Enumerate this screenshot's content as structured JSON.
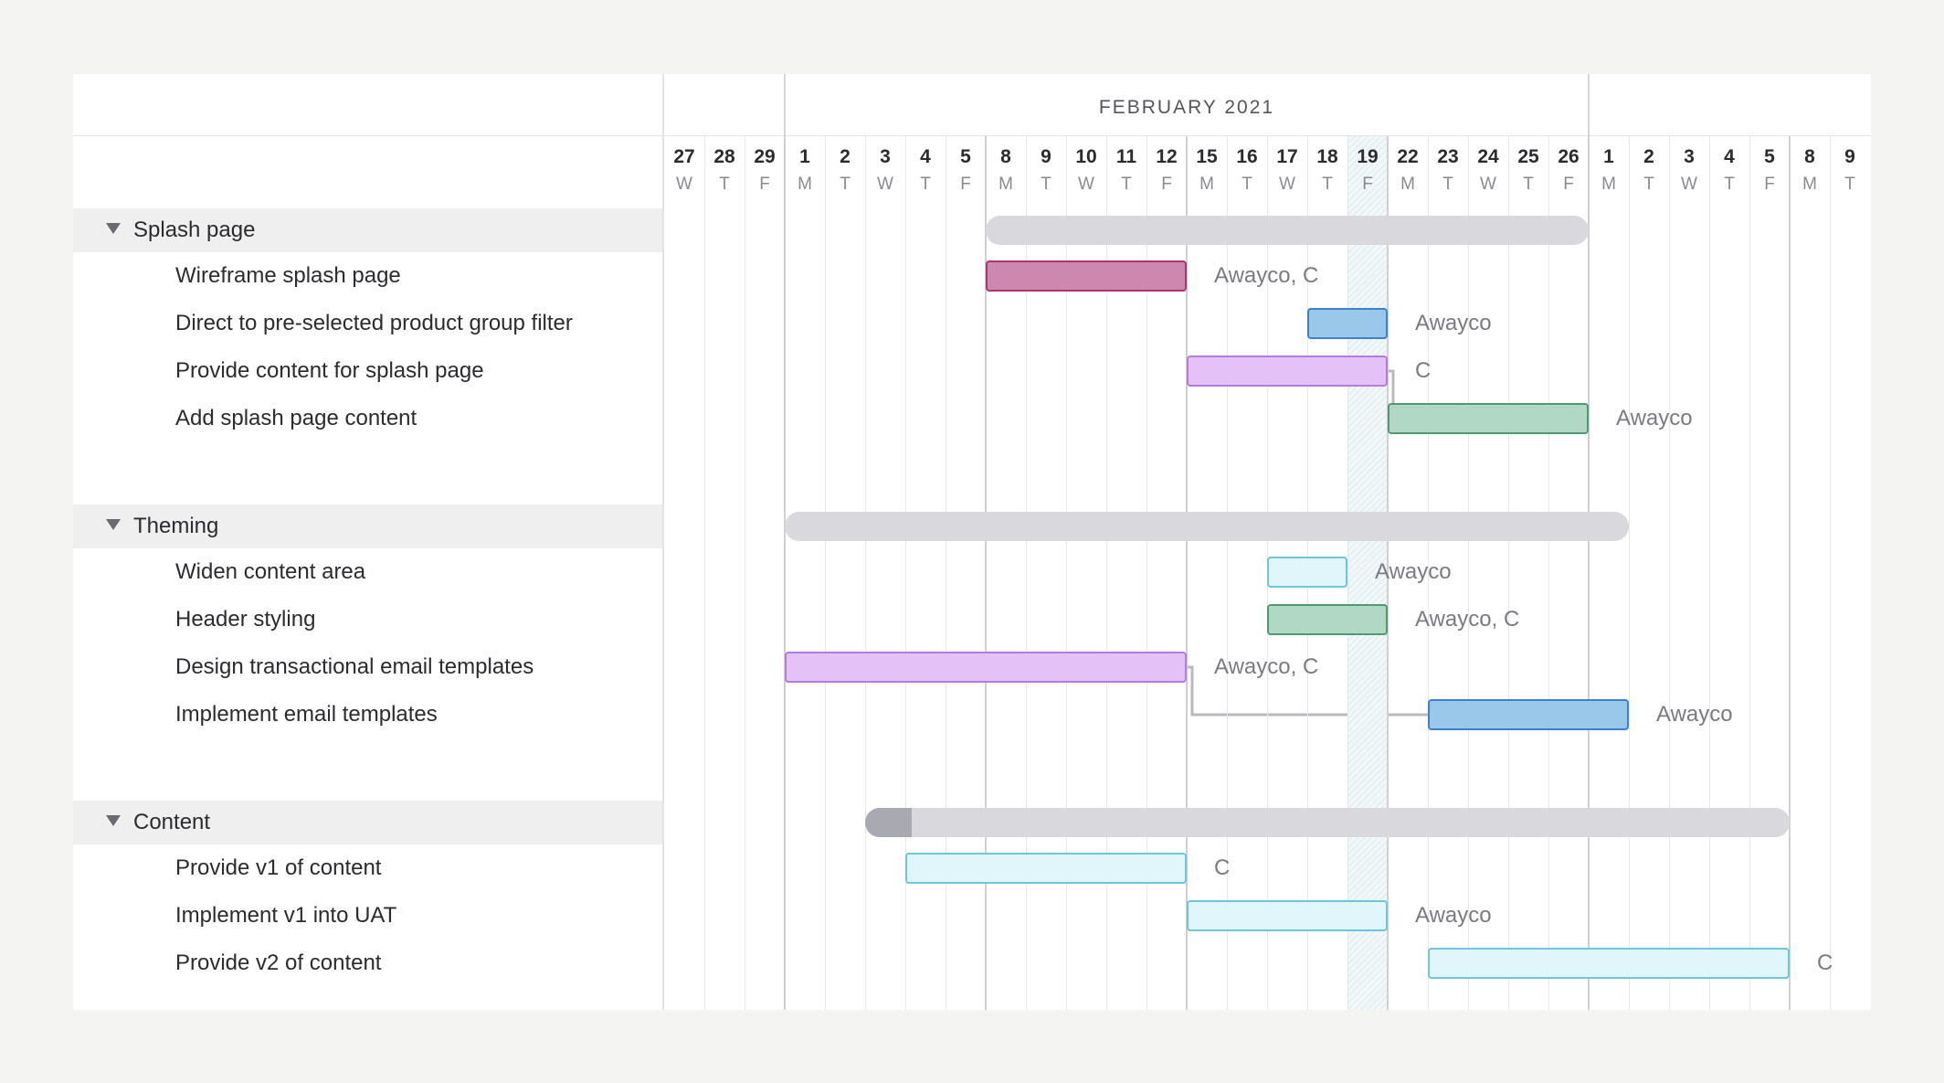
{
  "chart": {
    "month_label": "FEBRUARY 2021",
    "days": [
      {
        "num": "27",
        "dow": "W"
      },
      {
        "num": "28",
        "dow": "T"
      },
      {
        "num": "29",
        "dow": "F"
      },
      {
        "num": "1",
        "dow": "M"
      },
      {
        "num": "2",
        "dow": "T"
      },
      {
        "num": "3",
        "dow": "W"
      },
      {
        "num": "4",
        "dow": "T"
      },
      {
        "num": "5",
        "dow": "F"
      },
      {
        "num": "8",
        "dow": "M"
      },
      {
        "num": "9",
        "dow": "T"
      },
      {
        "num": "10",
        "dow": "W"
      },
      {
        "num": "11",
        "dow": "T"
      },
      {
        "num": "12",
        "dow": "F"
      },
      {
        "num": "15",
        "dow": "M"
      },
      {
        "num": "16",
        "dow": "T"
      },
      {
        "num": "17",
        "dow": "W"
      },
      {
        "num": "18",
        "dow": "T"
      },
      {
        "num": "19",
        "dow": "F"
      },
      {
        "num": "22",
        "dow": "M"
      },
      {
        "num": "23",
        "dow": "T"
      },
      {
        "num": "24",
        "dow": "W"
      },
      {
        "num": "25",
        "dow": "T"
      },
      {
        "num": "26",
        "dow": "F"
      },
      {
        "num": "1",
        "dow": "M"
      },
      {
        "num": "2",
        "dow": "T"
      },
      {
        "num": "3",
        "dow": "W"
      },
      {
        "num": "4",
        "dow": "T"
      },
      {
        "num": "5",
        "dow": "F"
      },
      {
        "num": "8",
        "dow": "M"
      },
      {
        "num": "9",
        "dow": "T"
      }
    ],
    "month_start_index": 3,
    "month_end_index": 23,
    "today_index": 17
  },
  "groups": [
    {
      "name": "Splash page",
      "start": 8,
      "end": 23,
      "progress": 0,
      "tasks": [
        {
          "name": "Wireframe splash page",
          "start": 8,
          "end": 13,
          "assignee": "Awayco, C",
          "fill": "#cc88ae",
          "stroke": "#b0336f"
        },
        {
          "name": "Direct to pre-selected product group filter",
          "start": 16,
          "end": 18,
          "assignee": "Awayco",
          "fill": "#99c8ea",
          "stroke": "#3a82d6"
        },
        {
          "name": "Provide content for splash page",
          "start": 13,
          "end": 18,
          "assignee": "C",
          "fill": "#e4c2f8",
          "stroke": "#b47ae6"
        },
        {
          "name": "Add splash page content",
          "start": 18,
          "end": 23,
          "assignee": "Awayco",
          "fill": "#b1d8c4",
          "stroke": "#4f9a70"
        }
      ],
      "dependencies": [
        [
          2,
          3
        ]
      ]
    },
    {
      "name": "Theming",
      "start": 3,
      "end": 24,
      "progress": 0,
      "tasks": [
        {
          "name": "Widen content area",
          "start": 15,
          "end": 17,
          "assignee": "Awayco",
          "fill": "#e0f6fb",
          "stroke": "#6cc7dc"
        },
        {
          "name": "Header styling",
          "start": 15,
          "end": 18,
          "assignee": "Awayco, C",
          "fill": "#b1d8c4",
          "stroke": "#4f9a70"
        },
        {
          "name": "Design transactional email templates",
          "start": 3,
          "end": 13,
          "assignee": "Awayco, C",
          "fill": "#e4c2f8",
          "stroke": "#b47ae6"
        },
        {
          "name": "Implement email templates",
          "start": 19,
          "end": 24,
          "assignee": "Awayco",
          "fill": "#99c8ea",
          "stroke": "#3a82d6"
        }
      ],
      "dependencies": [
        [
          2,
          3
        ]
      ]
    },
    {
      "name": "Content",
      "start": 5,
      "end": 28,
      "progress": 0.05,
      "tasks": [
        {
          "name": "Provide v1 of content",
          "start": 6,
          "end": 13,
          "assignee": "C",
          "fill": "#e0f6fb",
          "stroke": "#6cc7dc"
        },
        {
          "name": "Implement v1 into UAT",
          "start": 13,
          "end": 18,
          "assignee": "Awayco",
          "fill": "#e0f6fb",
          "stroke": "#6cc7dc"
        },
        {
          "name": "Provide v2 of content",
          "start": 19,
          "end": 28,
          "assignee": "C",
          "fill": "#e0f6fb",
          "stroke": "#6cc7dc"
        }
      ],
      "dependencies": []
    }
  ]
}
